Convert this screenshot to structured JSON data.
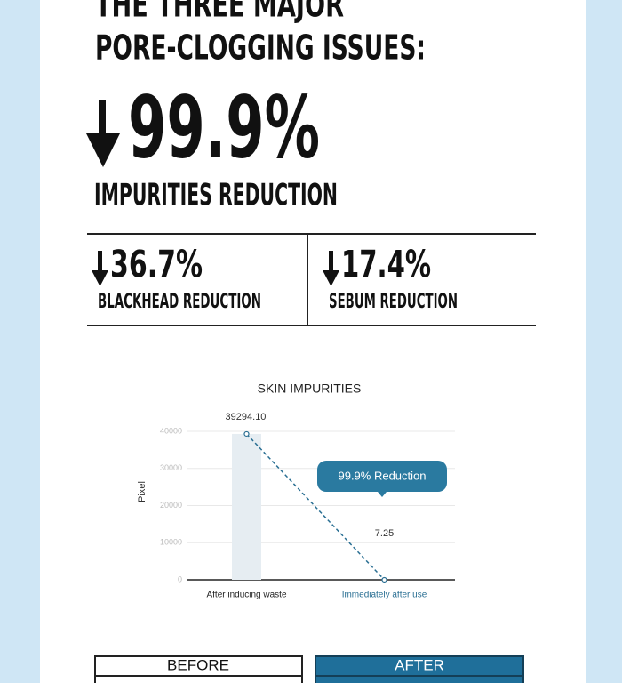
{
  "header": {
    "lines": [
      "THE THREE MAJOR",
      "PORE-CLOGGING ISSUES:"
    ]
  },
  "main_stat": {
    "value": "99.9%",
    "label": "IMPURITIES REDUCTION"
  },
  "sub_stats": [
    {
      "value": "36.7%",
      "label": "BLACKHEAD REDUCTION"
    },
    {
      "value": "17.4%",
      "label": "SEBUM REDUCTION"
    }
  ],
  "chart_data": {
    "type": "line",
    "title": "SKIN IMPURITIES",
    "ylabel": "Pixel",
    "categories": [
      "After inducing waste",
      "Immediately after use"
    ],
    "series": [
      {
        "values": [
          39294.1,
          7.25
        ],
        "value_labels": [
          "39294.10",
          "7.25"
        ],
        "color": "#2a6f93",
        "bar_colors": [
          "#e6edf2",
          "#3a8fbd"
        ]
      }
    ],
    "annotation": "99.9% Reduction",
    "ylim": [
      0,
      40000
    ],
    "yticks": [
      0,
      10000,
      20000,
      30000,
      40000
    ],
    "grid": true
  },
  "comparison": {
    "before": "BEFORE",
    "after": "AFTER"
  }
}
